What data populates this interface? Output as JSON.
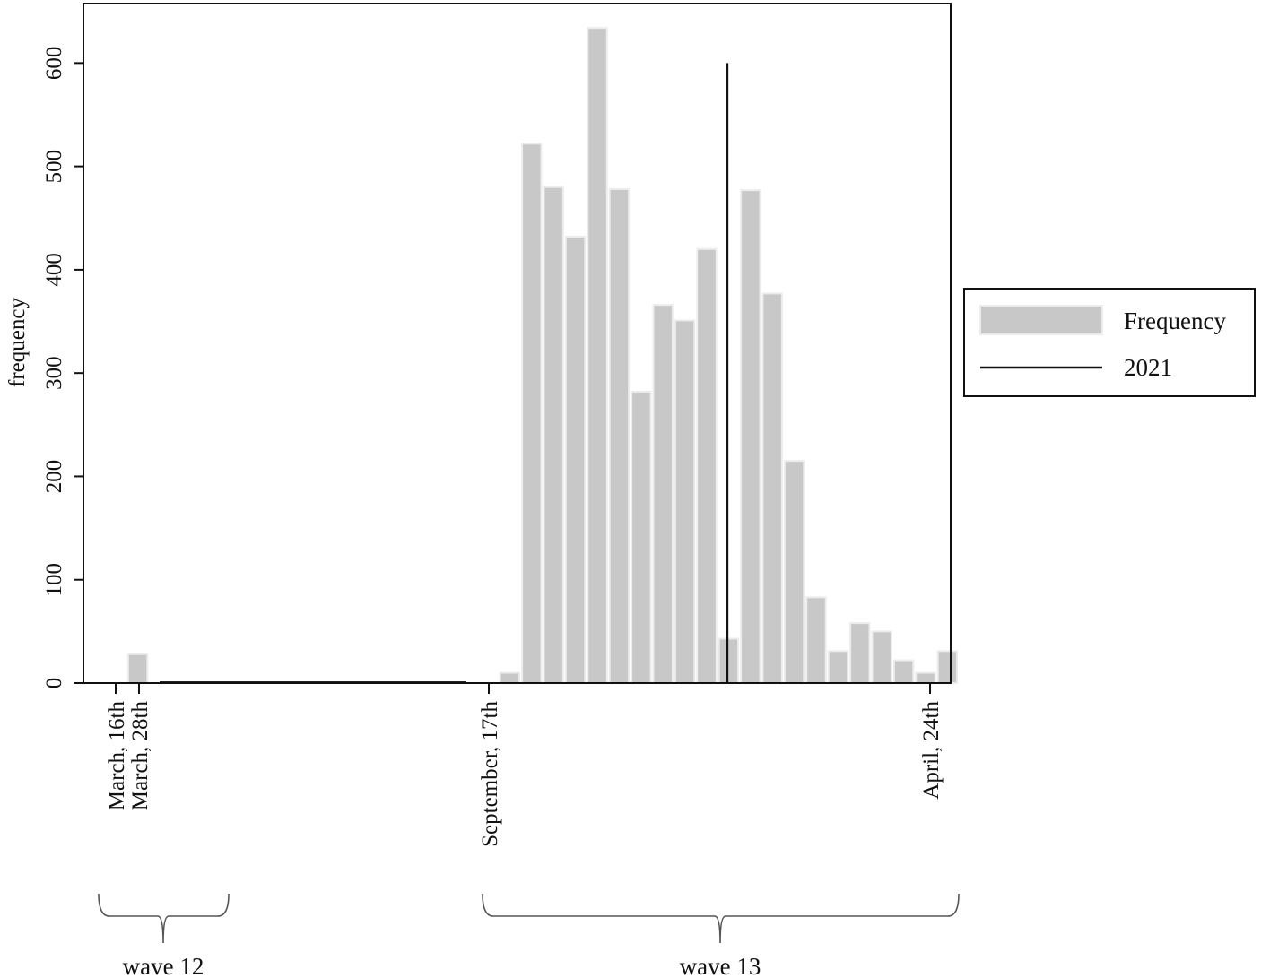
{
  "chart_data": {
    "type": "bar",
    "ylabel": "frequency",
    "xlabel": "",
    "ylim": [
      0,
      635
    ],
    "yticks": [
      0,
      100,
      200,
      300,
      400,
      500,
      600
    ],
    "x_tick_labels": [
      "March, 16th",
      "March, 28th",
      "September, 17th",
      "April, 24th"
    ],
    "series": [
      {
        "name": "Frequency",
        "type": "bar",
        "color": "#c8c8c8",
        "values": [
          0,
          28,
          0,
          0,
          0,
          0,
          0,
          0,
          0,
          0,
          0,
          0,
          0,
          0,
          0,
          0,
          0,
          0,
          10,
          522,
          480,
          432,
          634,
          478,
          282,
          366,
          351,
          420,
          43,
          477,
          377,
          215,
          83,
          31,
          58,
          50,
          22,
          10,
          31
        ]
      },
      {
        "name": "2021",
        "type": "vline",
        "color": "#111111",
        "bin": 28,
        "value": 600
      }
    ],
    "legend": {
      "position": "right",
      "entries": [
        "Frequency",
        "2021"
      ]
    },
    "grid": false,
    "brackets": [
      {
        "label": "wave 12"
      },
      {
        "label": "wave 13"
      }
    ]
  }
}
